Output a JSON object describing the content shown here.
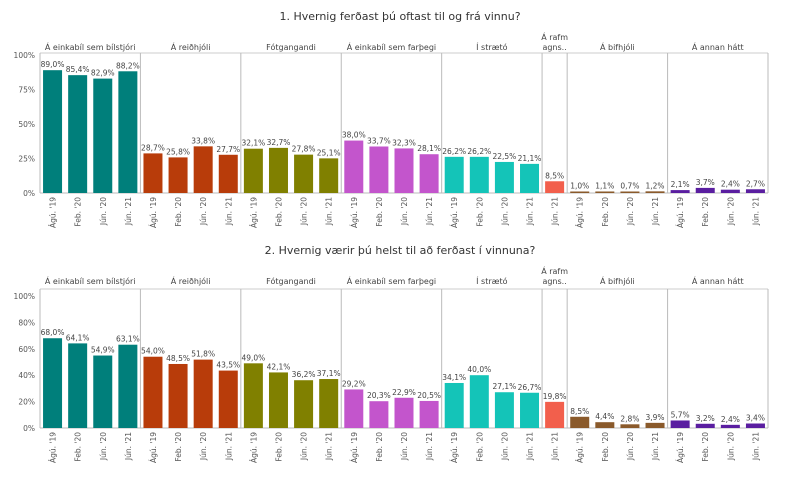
{
  "chart_data": [
    {
      "type": "bar",
      "title": "1. Hvernig ferðast þú oftast til og frá vinnu?",
      "ylim": [
        0,
        100
      ],
      "yticks": [
        "0%",
        "25%",
        "50%",
        "75%",
        "100%"
      ],
      "ytick_values": [
        0,
        25,
        50,
        75,
        100
      ],
      "grid": false,
      "panels": [
        {
          "header": [
            "Á einkabíl sem bílstjóri"
          ],
          "color": "#007f7b",
          "categories": [
            "Ágú. '19",
            "Feb. '20",
            "Jún. '20",
            "Jún. '21"
          ],
          "values": [
            89.0,
            85.4,
            82.9,
            88.2
          ],
          "labels": [
            "89,0%",
            "85,4%",
            "82,9%",
            "88,2%"
          ]
        },
        {
          "header": [
            "Á reiðhjóli"
          ],
          "color": "#b83c0a",
          "categories": [
            "Ágú. '19",
            "Feb. '20",
            "Jún. '20",
            "Jún. '21"
          ],
          "values": [
            28.7,
            25.8,
            33.8,
            27.7
          ],
          "labels": [
            "28,7%",
            "25,8%",
            "33,8%",
            "27,7%"
          ]
        },
        {
          "header": [
            "Fótgangandi"
          ],
          "color": "#808000",
          "categories": [
            "Ágú. '19",
            "Feb. '20",
            "Jún. '20",
            "Jún. '21"
          ],
          "values": [
            32.1,
            32.7,
            27.8,
            25.1
          ],
          "labels": [
            "32,1%",
            "32,7%",
            "27,8%",
            "25,1%"
          ]
        },
        {
          "header": [
            "Á einkabíl sem farþegi"
          ],
          "color": "#c355cc",
          "categories": [
            "Ágú. '19",
            "Feb. '20",
            "Jún. '20",
            "Jún. '21"
          ],
          "values": [
            38.0,
            33.7,
            32.3,
            28.1
          ],
          "labels": [
            "38,0%",
            "33,7%",
            "32,3%",
            "28,1%"
          ]
        },
        {
          "header": [
            "Í strætó"
          ],
          "color": "#14c4b8",
          "categories": [
            "Ágú. '19",
            "Feb. '20",
            "Jún. '20",
            "Jún. '21"
          ],
          "values": [
            26.2,
            26.2,
            22.5,
            21.1
          ],
          "labels": [
            "26,2%",
            "26,2%",
            "22,5%",
            "21,1%"
          ]
        },
        {
          "header": [
            "Á rafm",
            "agns.."
          ],
          "color": "#f25f4c",
          "categories": [
            "Jún. '21"
          ],
          "values": [
            8.5
          ],
          "labels": [
            "8,5%"
          ]
        },
        {
          "header": [
            "Á bifhjóli"
          ],
          "color": "#8a5a2b",
          "categories": [
            "Ágú. '19",
            "Feb. '20",
            "Jún. '20",
            "Jún. '21"
          ],
          "values": [
            1.0,
            1.1,
            0.7,
            1.2
          ],
          "labels": [
            "1,0%",
            "1,1%",
            "0,7%",
            "1,2%"
          ]
        },
        {
          "header": [
            "Á annan hátt"
          ],
          "color": "#5a1ea0",
          "categories": [
            "Ágú. '19",
            "Feb. '20",
            "Jún. '20",
            "Jún. '21"
          ],
          "values": [
            2.1,
            3.7,
            2.4,
            2.7
          ],
          "labels": [
            "2,1%",
            "3,7%",
            "2,4%",
            "2,7%"
          ]
        }
      ]
    },
    {
      "type": "bar",
      "title": "2. Hvernig værir þú helst til að ferðast í vinnuna?",
      "ylim": [
        0,
        100
      ],
      "yticks": [
        "0%",
        "20%",
        "40%",
        "60%",
        "80%",
        "100%"
      ],
      "ytick_values": [
        0,
        20,
        40,
        60,
        80,
        100
      ],
      "grid": false,
      "panels": [
        {
          "header": [
            "Á einkabíl sem bílstjóri"
          ],
          "color": "#007f7b",
          "categories": [
            "Ágú. '19",
            "Feb. '20",
            "Jún. '20",
            "Jún. '21"
          ],
          "values": [
            68.0,
            64.1,
            54.9,
            63.1
          ],
          "labels": [
            "68,0%",
            "64,1%",
            "54,9%",
            "63,1%"
          ]
        },
        {
          "header": [
            "Á reiðhjóli"
          ],
          "color": "#b83c0a",
          "categories": [
            "Ágú. '19",
            "Feb. '20",
            "Jún. '20",
            "Jún. '21"
          ],
          "values": [
            54.0,
            48.5,
            51.8,
            43.5
          ],
          "labels": [
            "54,0%",
            "48,5%",
            "51,8%",
            "43,5%"
          ]
        },
        {
          "header": [
            "Fótgangandi"
          ],
          "color": "#808000",
          "categories": [
            "Ágú. '19",
            "Feb. '20",
            "Jún. '20",
            "Jún. '21"
          ],
          "values": [
            49.0,
            42.1,
            36.2,
            37.1
          ],
          "labels": [
            "49,0%",
            "42,1%",
            "36,2%",
            "37,1%"
          ]
        },
        {
          "header": [
            "Á einkabíl sem farþegi"
          ],
          "color": "#c355cc",
          "categories": [
            "Ágú. '19",
            "Feb. '20",
            "Jún. '20",
            "Jún. '21"
          ],
          "values": [
            29.2,
            20.3,
            22.9,
            20.5
          ],
          "labels": [
            "29,2%",
            "20,3%",
            "22,9%",
            "20,5%"
          ]
        },
        {
          "header": [
            "Í strætó"
          ],
          "color": "#14c4b8",
          "categories": [
            "Ágú. '19",
            "Feb. '20",
            "Jún. '20",
            "Jún. '21"
          ],
          "values": [
            34.1,
            40.0,
            27.1,
            26.7
          ],
          "labels": [
            "34,1%",
            "40,0%",
            "27,1%",
            "26,7%"
          ]
        },
        {
          "header": [
            "Á rafm",
            "agns.."
          ],
          "color": "#f25f4c",
          "categories": [
            "Jún. '21"
          ],
          "values": [
            19.8
          ],
          "labels": [
            "19,8%"
          ]
        },
        {
          "header": [
            "Á bifhjóli"
          ],
          "color": "#8a5a2b",
          "categories": [
            "Ágú. '19",
            "Feb. '20",
            "Jún. '20",
            "Jún. '21"
          ],
          "values": [
            8.5,
            4.4,
            2.8,
            3.9
          ],
          "labels": [
            "8,5%",
            "4,4%",
            "2,8%",
            "3,9%"
          ]
        },
        {
          "header": [
            "Á annan hátt"
          ],
          "color": "#5a1ea0",
          "categories": [
            "Ágú. '19",
            "Feb. '20",
            "Jún. '20",
            "Jún. '21"
          ],
          "values": [
            5.7,
            3.2,
            2.4,
            3.4
          ],
          "labels": [
            "5,7%",
            "3,2%",
            "2,4%",
            "3,4%"
          ]
        }
      ]
    }
  ]
}
